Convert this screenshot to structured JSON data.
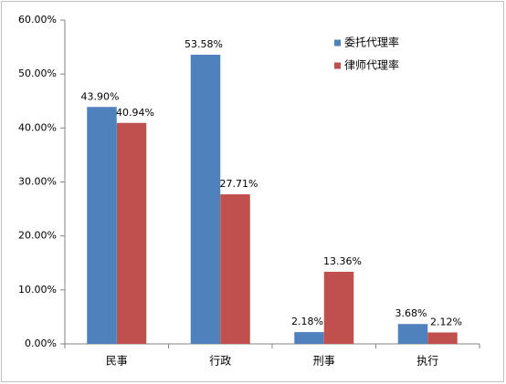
{
  "chart_data": {
    "type": "bar",
    "categories": [
      "民事",
      "行政",
      "刑事",
      "执行"
    ],
    "series": [
      {
        "name": "委托代理率",
        "color": "#4f81bd",
        "values": [
          43.9,
          53.58,
          2.18,
          3.68
        ],
        "value_labels": [
          "43.90%",
          "53.58%",
          "2.18%",
          "3.68%"
        ]
      },
      {
        "name": "律师代理率",
        "color": "#c0504d",
        "values": [
          40.94,
          27.71,
          13.36,
          2.12
        ],
        "value_labels": [
          "40.94%",
          "27.71%",
          "13.36%",
          "2.12%"
        ]
      }
    ],
    "ylim": [
      0,
      60
    ],
    "yticks": [
      {
        "value": 0,
        "label": "0.00%"
      },
      {
        "value": 10,
        "label": "10.00%"
      },
      {
        "value": 20,
        "label": "20.00%"
      },
      {
        "value": 30,
        "label": "30.00%"
      },
      {
        "value": 40,
        "label": "40.00%"
      },
      {
        "value": 50,
        "label": "50.00%"
      },
      {
        "value": 60,
        "label": "60.00%"
      }
    ],
    "grid": false,
    "legend": "top-right"
  }
}
